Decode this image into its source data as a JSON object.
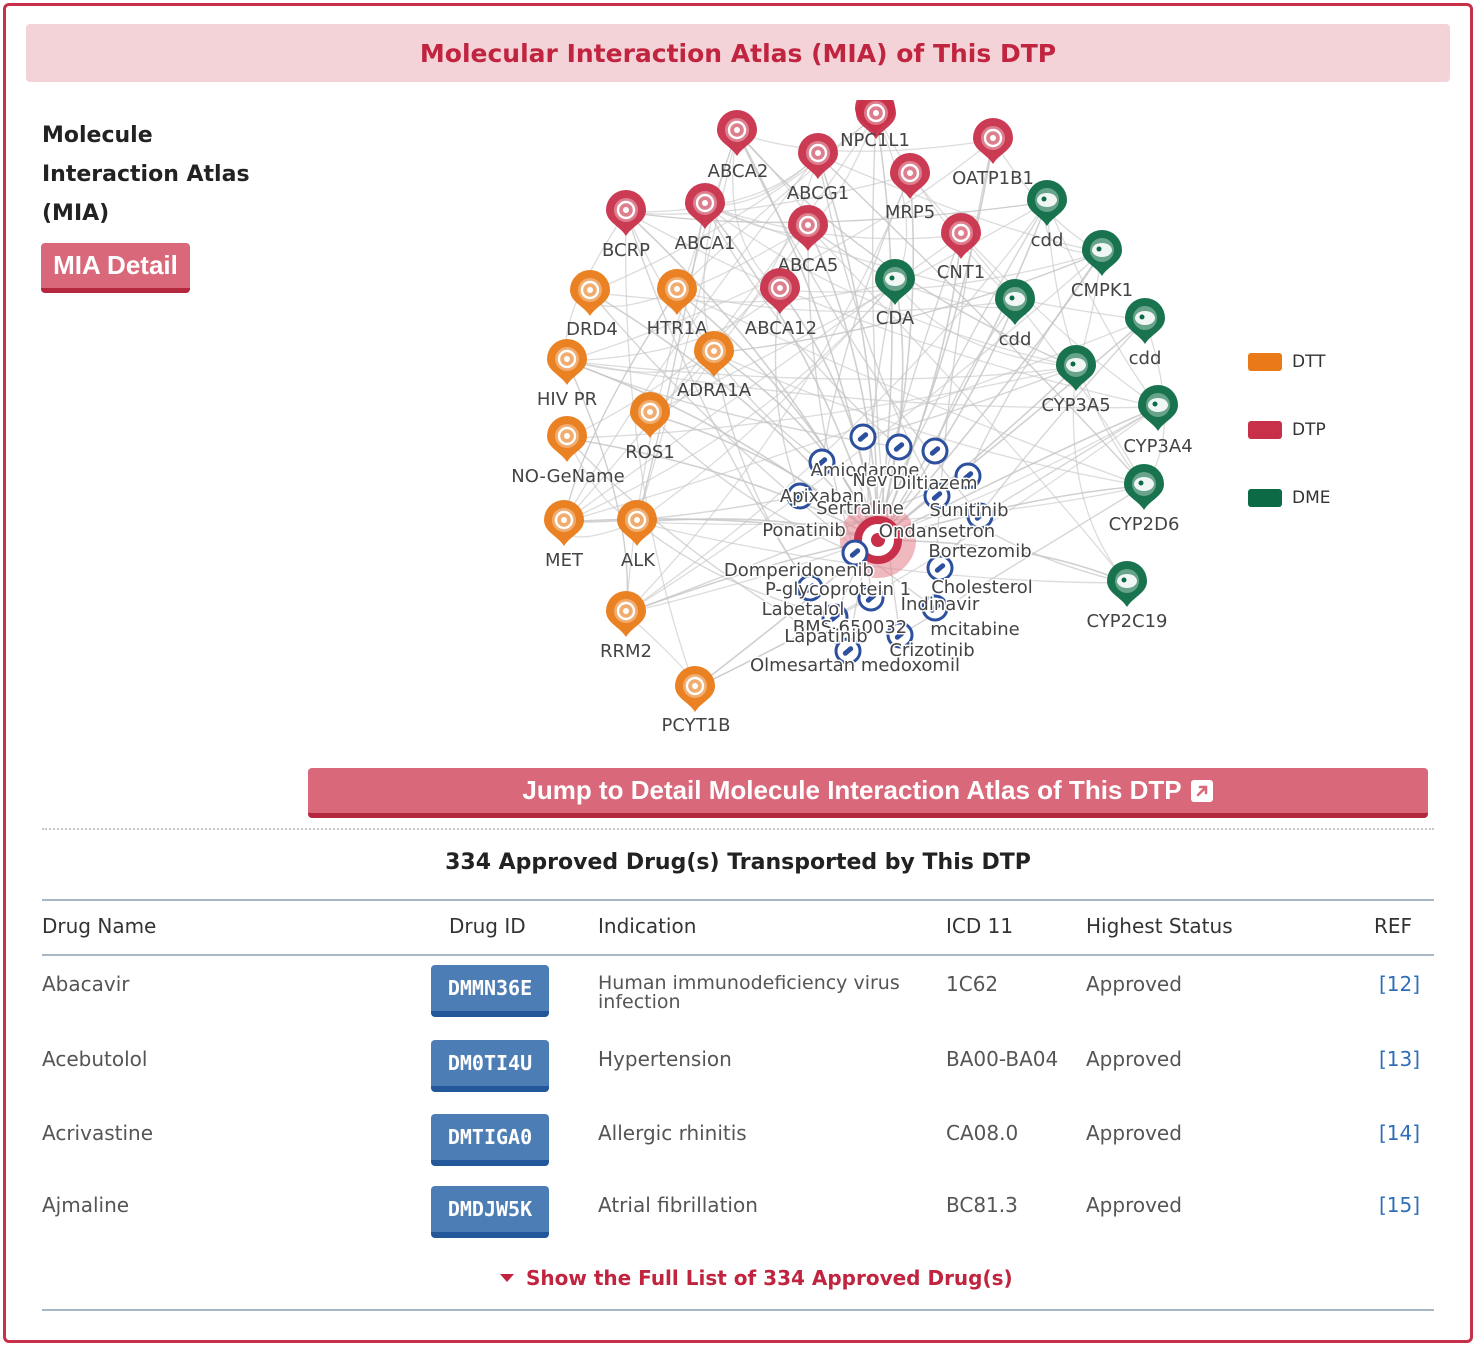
{
  "header": {
    "title": "Molecular Interaction Atlas (MIA) of This DTP"
  },
  "side": {
    "title": "Molecule Interaction Atlas (MIA)",
    "detail_button": "MIA Detail"
  },
  "colors": {
    "DTT": "#e97a17",
    "DTP": "#c8304a",
    "DME": "#0c6b45",
    "drug": "#2c4f9e",
    "edge": "#c4c4c4"
  },
  "legend": [
    {
      "label": "DTT",
      "color": "#e97a17"
    },
    {
      "label": "DTP",
      "color": "#c8304a"
    },
    {
      "label": "DME",
      "color": "#0c6b45"
    }
  ],
  "network": {
    "center_icon": "transporter-hub-icon",
    "nodes": [
      {
        "label": "",
        "type": "DTP"
      },
      {
        "label": "ABCA2",
        "type": "DTP"
      },
      {
        "label": "NPC1L1",
        "type": "DTP"
      },
      {
        "label": "ABCG1",
        "type": "DTP"
      },
      {
        "label": "OATP1B1",
        "type": "DTP"
      },
      {
        "label": "MRP5",
        "type": "DTP"
      },
      {
        "label": "BCRP",
        "type": "DTP"
      },
      {
        "label": "ABCA1",
        "type": "DTP"
      },
      {
        "label": "ABCA5",
        "type": "DTP"
      },
      {
        "label": "CNT1",
        "type": "DTP"
      },
      {
        "label": "ABCA12",
        "type": "DTP"
      },
      {
        "label": "cdd",
        "type": "DME"
      },
      {
        "label": "CMPK1",
        "type": "DME"
      },
      {
        "label": "CDA",
        "type": "DME"
      },
      {
        "label": "cdd",
        "type": "DME"
      },
      {
        "label": "cdd",
        "type": "DME"
      },
      {
        "label": "CYP3A5",
        "type": "DME"
      },
      {
        "label": "CYP3A4",
        "type": "DME"
      },
      {
        "label": "CYP2D6",
        "type": "DME"
      },
      {
        "label": "CYP2C19",
        "type": "DME"
      },
      {
        "label": "DRD4",
        "type": "DTT"
      },
      {
        "label": "HTR1A",
        "type": "DTT"
      },
      {
        "label": "ADRA1A",
        "type": "DTT"
      },
      {
        "label": "HIV PR",
        "type": "DTT"
      },
      {
        "label": "ROS1",
        "type": "DTT"
      },
      {
        "label": "NO-GeName",
        "type": "DTT"
      },
      {
        "label": "MET",
        "type": "DTT"
      },
      {
        "label": "ALK",
        "type": "DTT"
      },
      {
        "label": "RRM2",
        "type": "DTT"
      },
      {
        "label": "PCYT1B",
        "type": "DTT"
      }
    ],
    "drug_labels": [
      "Amiodarone",
      "Nev",
      "Diltiazem",
      "Apixaban",
      "Sertraline",
      "Sunitinib",
      "Ponatinib",
      "Ondansetron",
      "Bortezomib",
      "Domperidone",
      "nib",
      "P-glycoprotein 1",
      "Cholesterol",
      "Labetalol",
      "Indinavir",
      "BMS-650032",
      "mcitabine",
      "Lapatinib",
      "Crizotinib",
      "Olmesartan medoxomil"
    ]
  },
  "jump_button": {
    "label": "Jump to Detail Molecule Interaction Atlas of This DTP"
  },
  "table": {
    "title": "334 Approved Drug(s) Transported by This DTP",
    "headers": [
      "Drug Name",
      "Drug ID",
      "Indication",
      "ICD 11",
      "Highest Status",
      "REF"
    ],
    "rows": [
      {
        "name": "Abacavir",
        "id": "DMMN36E",
        "indication": "Human immunodeficiency virus infection",
        "icd": "1C62",
        "status": "Approved",
        "ref": "[12]"
      },
      {
        "name": "Acebutolol",
        "id": "DM0TI4U",
        "indication": "Hypertension",
        "icd": "BA00-BA04",
        "status": "Approved",
        "ref": "[13]"
      },
      {
        "name": "Acrivastine",
        "id": "DMTIGA0",
        "indication": "Allergic rhinitis",
        "icd": "CA08.0",
        "status": "Approved",
        "ref": "[14]"
      },
      {
        "name": "Ajmaline",
        "id": "DMDJW5K",
        "indication": "Atrial fibrillation",
        "icd": "BC81.3",
        "status": "Approved",
        "ref": "[15]"
      }
    ],
    "show_full": "Show the Full List of 334 Approved Drug(s)"
  }
}
